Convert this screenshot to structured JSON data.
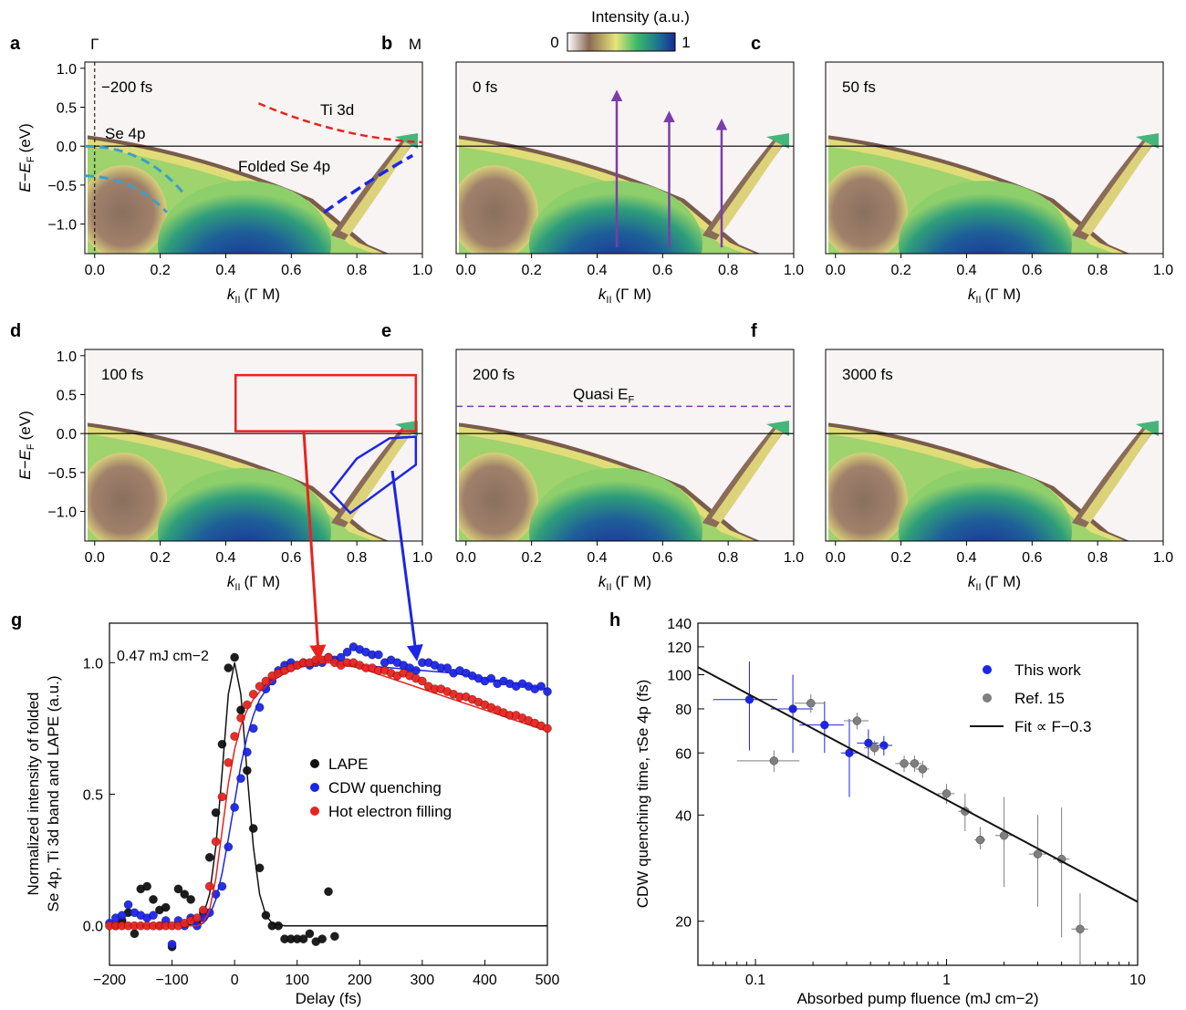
{
  "colorbar": {
    "title": "Intensity (a.u.)",
    "min_label": "0",
    "max_label": "1"
  },
  "colors": {
    "hot": "#e8231e",
    "cdw": "#1c25e6",
    "lape": "#111111",
    "ref": "#7f7f7f",
    "se4p": "#3aa0c9",
    "quasi": "#7a3ea8"
  },
  "arpes": {
    "xticks": [
      "0.0",
      "0.2",
      "0.4",
      "0.6",
      "0.8",
      "1.0"
    ],
    "yticks": [
      "1.0",
      "0.5",
      "0.0",
      "−0.5",
      "−1.0"
    ],
    "xlabel_k": "k",
    "xlabel_sub": "II",
    "xlabel_path": "(Γ M)",
    "ylabel": "E−E",
    "ylabel_sub": "F",
    "ylabel_unit": "(eV)",
    "gamma_label": "Γ",
    "m_label": "M",
    "panels": [
      {
        "letter": "a",
        "time": "−200 fs"
      },
      {
        "letter": "b",
        "time": "0 fs"
      },
      {
        "letter": "c",
        "time": "50 fs"
      },
      {
        "letter": "d",
        "time": "100 fs"
      },
      {
        "letter": "e",
        "time": "200 fs"
      },
      {
        "letter": "f",
        "time": "3000 fs"
      }
    ],
    "annotations": {
      "ti3d": "Ti 3d",
      "se4p": "Se 4p",
      "folded": "Folded Se 4p",
      "quasi": "Quasi E",
      "quasi_sub": "F"
    }
  },
  "chart_data": [
    {
      "panel": "g",
      "type": "scatter",
      "annotation": "0.47 mJ cm−2",
      "xlabel": "Delay (fs)",
      "ylabel_line1": "Normalized intensity of folded",
      "ylabel_line2": "Se 4p, Ti 3d band and LAPE (a.u.)",
      "xlim": [
        -200,
        500
      ],
      "ylim": [
        -0.15,
        1.15
      ],
      "xticks": [
        -200,
        -100,
        0,
        100,
        200,
        300,
        400,
        500
      ],
      "xtick_labels": [
        "−200",
        "−100",
        "0",
        "100",
        "200",
        "300",
        "400",
        "500"
      ],
      "yticks": [
        0,
        0.5,
        1.0
      ],
      "ytick_labels": [
        "0.0",
        "0.5",
        "1.0"
      ],
      "legend_position": "center-right",
      "series": [
        {
          "name": "LAPE",
          "color_key": "lape",
          "x": [
            -190,
            -180,
            -170,
            -160,
            -150,
            -140,
            -130,
            -120,
            -110,
            -100,
            -90,
            -80,
            -70,
            -60,
            -50,
            -40,
            -30,
            -20,
            -10,
            0,
            10,
            20,
            30,
            40,
            50,
            60,
            70,
            80,
            90,
            100,
            110,
            120,
            130,
            140,
            150,
            160
          ],
          "y": [
            0.0,
            0.02,
            0.05,
            -0.03,
            0.14,
            0.15,
            0.1,
            0.06,
            0.07,
            -0.08,
            0.14,
            0.12,
            0.1,
            0.01,
            0.05,
            0.26,
            0.43,
            0.69,
            0.98,
            1.02,
            0.82,
            0.59,
            0.37,
            0.22,
            0.04,
            0.0,
            0.0,
            -0.05,
            -0.05,
            -0.05,
            -0.05,
            -0.03,
            -0.06,
            -0.05,
            0.13,
            -0.04
          ],
          "fit_x": [
            -200,
            -80,
            -60,
            -50,
            -40,
            -30,
            -20,
            -10,
            0,
            10,
            20,
            30,
            40,
            50,
            60,
            80,
            500
          ],
          "fit_y": [
            0,
            0,
            0.01,
            0.04,
            0.12,
            0.3,
            0.58,
            0.88,
            1.0,
            0.88,
            0.58,
            0.3,
            0.12,
            0.04,
            0.01,
            0,
            0
          ]
        },
        {
          "name": "CDW quenching",
          "color_key": "cdw",
          "x": [
            -200,
            -190,
            -180,
            -170,
            -160,
            -150,
            -140,
            -130,
            -120,
            -110,
            -100,
            -90,
            -80,
            -70,
            -60,
            -50,
            -40,
            -30,
            -20,
            -10,
            0,
            10,
            20,
            30,
            40,
            50,
            60,
            70,
            80,
            90,
            100,
            110,
            120,
            130,
            140,
            150,
            160,
            170,
            180,
            190,
            200,
            210,
            220,
            230,
            240,
            250,
            260,
            270,
            280,
            290,
            300,
            310,
            320,
            330,
            340,
            350,
            360,
            370,
            380,
            390,
            400,
            410,
            420,
            430,
            440,
            450,
            460,
            470,
            480,
            490,
            500
          ],
          "y": [
            0.01,
            0.03,
            0.04,
            0.08,
            0.05,
            0.04,
            0.03,
            0.04,
            0.0,
            0.02,
            -0.07,
            0.02,
            0.0,
            0.03,
            0.0,
            0.03,
            0.05,
            0.12,
            0.15,
            0.3,
            0.45,
            0.56,
            0.66,
            0.75,
            0.83,
            0.9,
            0.93,
            0.97,
            0.99,
            1.0,
            0.99,
            1.0,
            0.99,
            1.0,
            1.0,
            1.02,
            1.01,
            1.02,
            1.04,
            1.06,
            1.05,
            1.04,
            1.03,
            1.03,
            1.0,
            1.01,
            1.0,
            0.99,
            0.98,
            0.97,
            1.0,
            1.0,
            0.99,
            0.98,
            0.98,
            0.96,
            0.97,
            0.96,
            0.95,
            0.94,
            0.93,
            0.94,
            0.92,
            0.93,
            0.92,
            0.91,
            0.92,
            0.91,
            0.9,
            0.91,
            0.89
          ],
          "fit_x": [
            -200,
            -60,
            -50,
            -40,
            -30,
            -20,
            -10,
            0,
            10,
            20,
            30,
            40,
            60,
            80,
            100,
            120,
            150,
            200,
            250,
            300,
            350,
            400,
            450,
            500
          ],
          "fit_y": [
            0,
            0,
            0.01,
            0.04,
            0.1,
            0.2,
            0.33,
            0.47,
            0.61,
            0.72,
            0.8,
            0.86,
            0.93,
            0.96,
            0.98,
            0.99,
            1.0,
            0.99,
            0.98,
            0.97,
            0.96,
            0.94,
            0.92,
            0.9
          ]
        },
        {
          "name": "Hot electron filling",
          "color_key": "hot",
          "x": [
            -200,
            -190,
            -180,
            -170,
            -160,
            -150,
            -140,
            -130,
            -120,
            -110,
            -100,
            -90,
            -80,
            -70,
            -60,
            -50,
            -40,
            -30,
            -20,
            -10,
            0,
            10,
            20,
            30,
            40,
            50,
            60,
            70,
            80,
            90,
            100,
            110,
            120,
            130,
            140,
            150,
            160,
            170,
            180,
            190,
            200,
            210,
            220,
            230,
            240,
            250,
            260,
            270,
            280,
            290,
            300,
            310,
            320,
            330,
            340,
            350,
            360,
            370,
            380,
            390,
            400,
            410,
            420,
            430,
            440,
            450,
            460,
            470,
            480,
            490,
            500
          ],
          "y": [
            0.0,
            0.0,
            0.0,
            0.0,
            0.0,
            0.0,
            0.0,
            0.0,
            0.0,
            0.0,
            0.0,
            0.0,
            0.01,
            0.02,
            0.03,
            0.06,
            0.15,
            0.32,
            0.49,
            0.62,
            0.72,
            0.79,
            0.84,
            0.88,
            0.91,
            0.93,
            0.95,
            0.96,
            0.97,
            0.98,
            0.99,
            1.0,
            1.0,
            1.01,
            1.01,
            1.02,
            1.0,
            0.99,
            1.0,
            1.0,
            0.99,
            0.98,
            0.98,
            0.97,
            0.97,
            0.96,
            0.95,
            0.96,
            0.95,
            0.94,
            0.93,
            0.91,
            0.9,
            0.9,
            0.89,
            0.88,
            0.87,
            0.87,
            0.86,
            0.85,
            0.84,
            0.83,
            0.82,
            0.81,
            0.8,
            0.8,
            0.79,
            0.78,
            0.77,
            0.76,
            0.75
          ],
          "fit_x": [
            -200,
            -60,
            -50,
            -40,
            -30,
            -20,
            -10,
            0,
            10,
            20,
            30,
            40,
            60,
            80,
            100,
            120,
            150,
            200,
            250,
            300,
            350,
            400,
            450,
            500
          ],
          "fit_y": [
            0,
            0,
            0.01,
            0.06,
            0.18,
            0.36,
            0.54,
            0.67,
            0.76,
            0.82,
            0.86,
            0.89,
            0.93,
            0.96,
            0.98,
            0.99,
            1.0,
            0.98,
            0.94,
            0.9,
            0.86,
            0.82,
            0.78,
            0.74
          ]
        }
      ]
    },
    {
      "panel": "h",
      "type": "scatter",
      "xscale": "log",
      "yscale": "log",
      "xlabel": "Absorbed pump fluence (mJ cm−2)",
      "ylabel": "CDW quenching time, τSe 4p (fs)",
      "xlim": [
        0.05,
        10
      ],
      "ylim": [
        15,
        140
      ],
      "xticks": [
        0.1,
        1,
        10
      ],
      "xtick_labels": [
        "0.1",
        "1",
        "10"
      ],
      "yticks": [
        20,
        40,
        60,
        80,
        100,
        120,
        140
      ],
      "ytick_labels": [
        "20",
        "40",
        "60",
        "80",
        "100",
        "120",
        "140"
      ],
      "legend_position": "top-right",
      "series": [
        {
          "name": "This work",
          "color_key": "cdw",
          "points": [
            {
              "x": 0.093,
              "y": 85,
              "xerr": [
                0.06,
                0.13
              ],
              "yerr": [
                61,
                109
              ]
            },
            {
              "x": 0.157,
              "y": 80,
              "xerr": [
                0.12,
                0.2
              ],
              "yerr": [
                60,
                100
              ]
            },
            {
              "x": 0.23,
              "y": 72,
              "xerr": [
                0.17,
                0.29
              ],
              "yerr": [
                60,
                84
              ]
            },
            {
              "x": 0.31,
              "y": 60,
              "xerr": [
                0.28,
                0.35
              ],
              "yerr": [
                45,
                75
              ]
            },
            {
              "x": 0.39,
              "y": 64,
              "xerr": [
                0.34,
                0.44
              ],
              "yerr": [
                58,
                70
              ]
            },
            {
              "x": 0.47,
              "y": 63,
              "xerr": [
                0.43,
                0.52
              ],
              "yerr": [
                59,
                67
              ]
            }
          ]
        },
        {
          "name": "Ref. 15",
          "color_key": "ref",
          "points": [
            {
              "x": 0.125,
              "y": 57,
              "xerr": [
                0.08,
                0.17
              ],
              "yerr": [
                53,
                61
              ]
            },
            {
              "x": 0.195,
              "y": 83,
              "xerr": [
                0.16,
                0.23
              ],
              "yerr": [
                78,
                88
              ]
            },
            {
              "x": 0.34,
              "y": 74,
              "xerr": [
                0.29,
                0.39
              ],
              "yerr": [
                70,
                78
              ]
            },
            {
              "x": 0.42,
              "y": 62,
              "xerr": [
                0.37,
                0.47
              ],
              "yerr": [
                59,
                65
              ]
            },
            {
              "x": 0.6,
              "y": 56,
              "xerr": [
                0.54,
                0.66
              ],
              "yerr": [
                53,
                59
              ]
            },
            {
              "x": 0.68,
              "y": 56,
              "xerr": [
                0.62,
                0.74
              ],
              "yerr": [
                53,
                59
              ]
            },
            {
              "x": 0.75,
              "y": 54,
              "xerr": [
                0.69,
                0.81
              ],
              "yerr": [
                51,
                57
              ]
            },
            {
              "x": 1.0,
              "y": 46,
              "xerr": [
                0.9,
                1.1
              ],
              "yerr": [
                43,
                49
              ]
            },
            {
              "x": 1.25,
              "y": 41,
              "xerr": [
                1.15,
                1.35
              ],
              "yerr": [
                36,
                46
              ]
            },
            {
              "x": 1.5,
              "y": 34,
              "xerr": [
                1.4,
                1.6
              ],
              "yerr": [
                32,
                37
              ]
            },
            {
              "x": 2.0,
              "y": 35,
              "xerr": [
                1.8,
                2.2
              ],
              "yerr": [
                25,
                45
              ]
            },
            {
              "x": 3.0,
              "y": 31,
              "xerr": [
                2.7,
                3.3
              ],
              "yerr": [
                22,
                40
              ]
            },
            {
              "x": 4.0,
              "y": 30,
              "xerr": [
                3.6,
                4.4
              ],
              "yerr": [
                18,
                42
              ]
            },
            {
              "x": 5.0,
              "y": 19,
              "xerr": [
                4.5,
                5.5
              ],
              "yerr": [
                15,
                24
              ]
            }
          ]
        },
        {
          "name": "Fit ∝ F−0.3",
          "type": "line",
          "color_key": "lape",
          "x": [
            0.05,
            10
          ],
          "y": [
            105,
            22.7
          ]
        }
      ]
    }
  ]
}
